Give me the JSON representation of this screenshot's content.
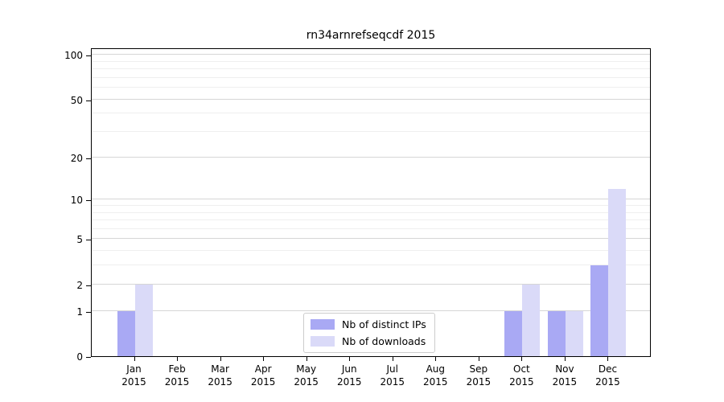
{
  "title": "rn34arnrefseqcdf 2015",
  "colors": {
    "distinct_ips": "#a9a9f4",
    "downloads": "#dadaf8",
    "grid_major": "#d6d6d6",
    "grid_minor": "#efefef",
    "axis": "#000000",
    "text": "#000000"
  },
  "legend": {
    "items": [
      {
        "label": "Nb of distinct IPs",
        "color_key": "distinct_ips"
      },
      {
        "label": "Nb of downloads",
        "color_key": "downloads"
      }
    ]
  },
  "chart_data": {
    "type": "bar",
    "title": "rn34arnrefseqcdf 2015",
    "categories": [
      "Jan 2015",
      "Feb 2015",
      "Mar 2015",
      "Apr 2015",
      "May 2015",
      "Jun 2015",
      "Jul 2015",
      "Aug 2015",
      "Sep 2015",
      "Oct 2015",
      "Nov 2015",
      "Dec 2015"
    ],
    "series": [
      {
        "name": "Nb of distinct IPs",
        "color_key": "distinct_ips",
        "values": [
          1,
          0,
          0,
          0,
          0,
          0,
          0,
          0,
          0,
          1,
          1,
          3
        ]
      },
      {
        "name": "Nb of downloads",
        "color_key": "downloads",
        "values": [
          2,
          0,
          0,
          0,
          0,
          0,
          0,
          0,
          0,
          2,
          1,
          12
        ]
      }
    ],
    "xlabel": "",
    "ylabel": "",
    "yscale": "log1p",
    "ylim": [
      0,
      112
    ],
    "yticks_major": [
      0,
      1,
      2,
      5,
      10,
      20,
      50,
      100
    ],
    "yticks_minor": [
      3,
      4,
      6,
      7,
      8,
      9,
      30,
      40,
      60,
      70,
      80,
      90
    ],
    "grid": true,
    "legend_position": "lower center"
  }
}
